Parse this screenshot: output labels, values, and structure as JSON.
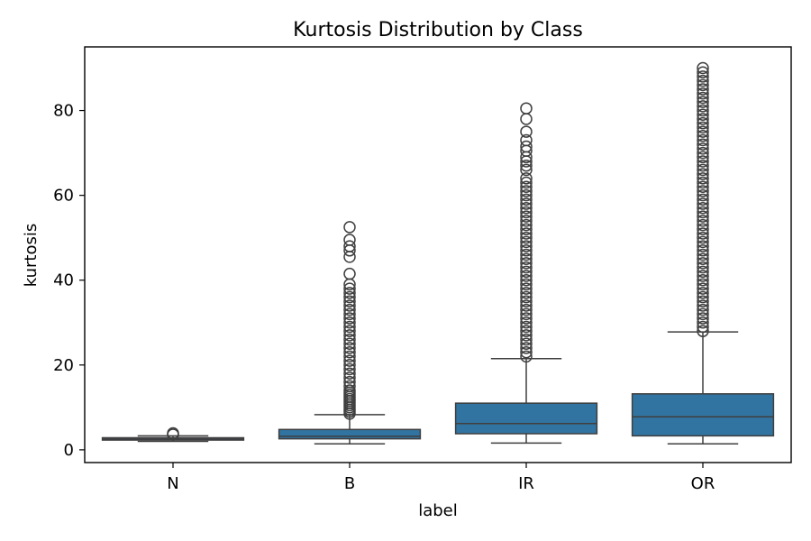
{
  "chart_data": {
    "type": "box",
    "title": "Kurtosis Distribution by Class",
    "xlabel": "label",
    "ylabel": "kurtosis",
    "categories": [
      "N",
      "B",
      "IR",
      "OR"
    ],
    "ylim": [
      -3,
      95
    ],
    "yticks": [
      0,
      20,
      40,
      60,
      80
    ],
    "grid": false,
    "box_color": "#3274a1",
    "edge_color": "#3f3f3f",
    "boxes": [
      {
        "label": "N",
        "whisker_low": 2.0,
        "q1": 2.3,
        "median": 2.55,
        "q3": 2.85,
        "whisker_high": 3.3,
        "outliers": [
          3.6,
          3.9
        ]
      },
      {
        "label": "B",
        "whisker_low": 1.4,
        "q1": 2.6,
        "median": 3.2,
        "q3": 4.8,
        "whisker_high": 8.3,
        "outliers": [
          8.5,
          9,
          9.5,
          10,
          10.5,
          11,
          11.5,
          12,
          12.5,
          13,
          13.5,
          14,
          15,
          16,
          17,
          18,
          19,
          20,
          21,
          22,
          23,
          24,
          25,
          26,
          27,
          28,
          29,
          30,
          31,
          32,
          33,
          34,
          35,
          36,
          37,
          38,
          39,
          41.5,
          45.5,
          47,
          48,
          49.5,
          52.5
        ]
      },
      {
        "label": "IR",
        "whisker_low": 1.6,
        "q1": 3.8,
        "median": 6.2,
        "q3": 11.0,
        "whisker_high": 21.5,
        "outliers": [
          22,
          23,
          24,
          25,
          26,
          27,
          28,
          29,
          30,
          31,
          32,
          33,
          34,
          35,
          36,
          37,
          38,
          39,
          40,
          41,
          42,
          43,
          44,
          45,
          46,
          47,
          48,
          49,
          50,
          51,
          52,
          53,
          54,
          55,
          56,
          57,
          58,
          59,
          60,
          61,
          62,
          63,
          64,
          66,
          67,
          68,
          69,
          70.5,
          71.5,
          73,
          75,
          78,
          80.5
        ]
      },
      {
        "label": "OR",
        "whisker_low": 1.4,
        "q1": 3.3,
        "median": 7.8,
        "q3": 13.2,
        "whisker_high": 27.8,
        "outliers": [
          28,
          29,
          30,
          31,
          32,
          33,
          34,
          35,
          36,
          37,
          38,
          39,
          40,
          41,
          42,
          43,
          44,
          45,
          46,
          47,
          48,
          49,
          50,
          51,
          52,
          53,
          54,
          55,
          56,
          57,
          58,
          59,
          60,
          61,
          62,
          63,
          64,
          65,
          66,
          67,
          68,
          69,
          70,
          71,
          72,
          73,
          74,
          75,
          76,
          77,
          78,
          79,
          80,
          81,
          82,
          83,
          84,
          85,
          86,
          87,
          88,
          89,
          90
        ]
      }
    ]
  }
}
